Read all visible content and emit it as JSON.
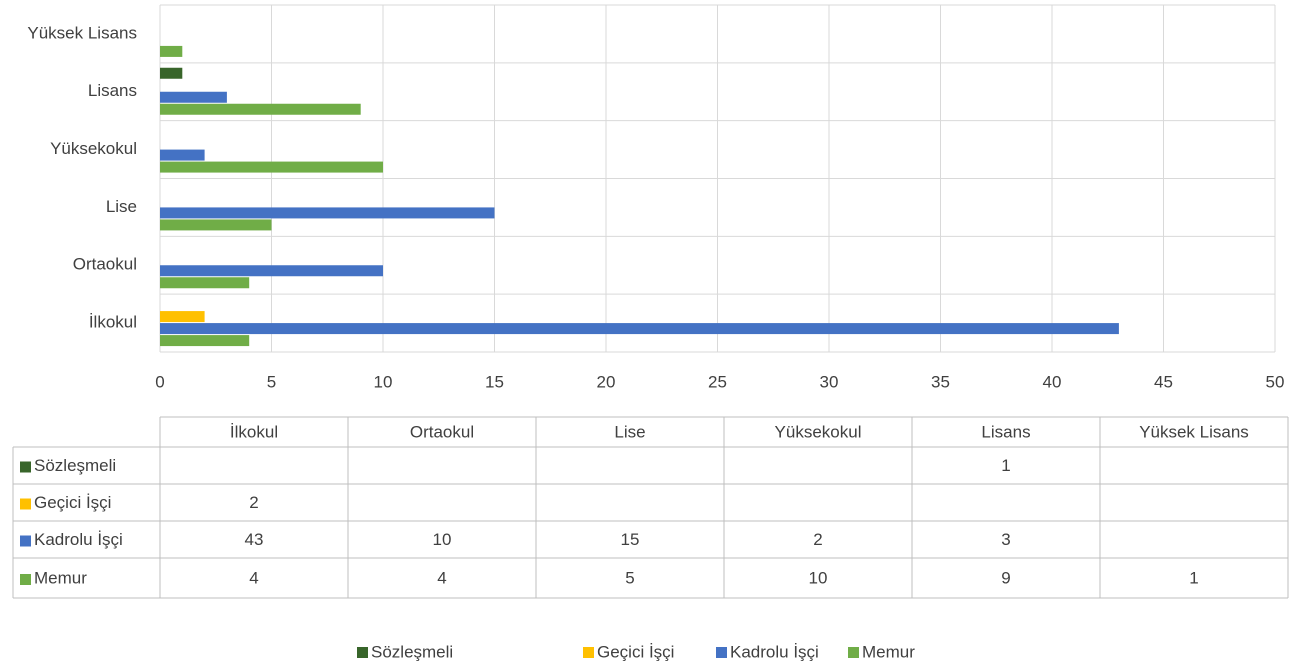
{
  "chart_data": {
    "type": "bar",
    "orientation": "horizontal",
    "categories": [
      "İlkokul",
      "Ortaokul",
      "Lise",
      "Yüksekokul",
      "Lisans",
      "Yüksek Lisans"
    ],
    "series": [
      {
        "name": "Sözleşmeli",
        "color": "#38652a",
        "values": [
          null,
          null,
          null,
          null,
          1,
          null
        ]
      },
      {
        "name": "Geçici İşçi",
        "color": "#ffc000",
        "values": [
          2,
          null,
          null,
          null,
          null,
          null
        ]
      },
      {
        "name": "Kadrolu İşçi",
        "color": "#4472c4",
        "values": [
          43,
          10,
          15,
          2,
          3,
          null
        ]
      },
      {
        "name": "Memur",
        "color": "#70ad47",
        "values": [
          4,
          4,
          5,
          10,
          9,
          1
        ]
      }
    ],
    "xlim": [
      0,
      50
    ],
    "xticks": [
      0,
      5,
      10,
      15,
      20,
      25,
      30,
      35,
      40,
      45,
      50
    ],
    "grid": true,
    "legend": "bottom"
  }
}
